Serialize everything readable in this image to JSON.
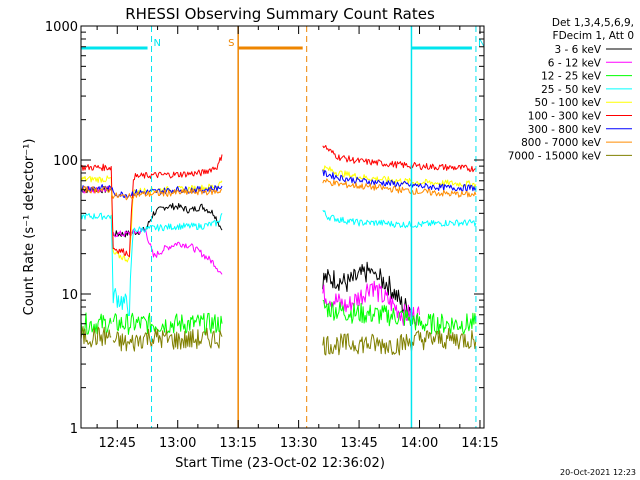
{
  "chart_data": {
    "type": "line",
    "title": "RHESSI Observing Summary Count Rates",
    "xlabel": "Start Time (23-Oct-02 12:36:02)",
    "ylabel": "Count Rate (s⁻¹ detector⁻¹)",
    "yscale": "log",
    "ylim": [
      1,
      1000
    ],
    "xlim_minutes": [
      36,
      136
    ],
    "x_ticks": [
      {
        "label": "12:45",
        "minute": 45
      },
      {
        "label": "13:00",
        "minute": 60
      },
      {
        "label": "13:15",
        "minute": 75
      },
      {
        "label": "13:30",
        "minute": 90
      },
      {
        "label": "13:45",
        "minute": 105
      },
      {
        "label": "14:00",
        "minute": 120
      },
      {
        "label": "14:15",
        "minute": 135
      }
    ],
    "y_ticks": [
      {
        "label": "1",
        "value": 1
      },
      {
        "label": "10",
        "value": 10
      },
      {
        "label": "100",
        "value": 100
      },
      {
        "label": "1000",
        "value": 1000
      }
    ],
    "legend_header": [
      "Det 1,3,4,5,6,9,",
      "FDecim 1, Att 0"
    ],
    "legend_position": "right",
    "footer_timestamp": "20-Oct-2021 12:23",
    "markers": [
      {
        "label": "N",
        "color": "#00e5ee",
        "bar_start": 36,
        "bar_end": 53.5,
        "dash_at": 53.5
      },
      {
        "label": "N",
        "color": "#00e5ee",
        "bar_start": 118,
        "bar_end": 134,
        "dash_at": 134
      },
      {
        "label": "S",
        "color": "#ee8500",
        "bar_start": 75,
        "bar_end": 92,
        "dash_at": 92
      }
    ],
    "solid_verticals": [
      {
        "color": "#ee8500",
        "at": 75
      },
      {
        "color": "#00e5ee",
        "at": 118
      }
    ],
    "series": [
      {
        "name": "3 - 6 keV",
        "color": "#000000",
        "segments": [
          {
            "x": [
              36,
              43.5
            ],
            "y": [
              60,
              60
            ]
          },
          {
            "x": [
              44,
              47,
              52,
              54,
              57,
              60,
              63,
              66,
              69,
              71
            ],
            "y": [
              28,
              28,
              30,
              40,
              45,
              45,
              42,
              45,
              40,
              30
            ]
          },
          {
            "x": [
              96,
              99,
              102,
              104,
              106,
              108,
              110,
              112,
              114,
              116,
              118
            ],
            "y": [
              13,
              13,
              12,
              13,
              14,
              15,
              13,
              12,
              10,
              8,
              8
            ]
          }
        ]
      },
      {
        "name": "6 - 12 keV",
        "color": "#ff00ff",
        "segments": [
          {
            "x": [
              36,
              43.5
            ],
            "y": [
              60,
              60
            ]
          },
          {
            "x": [
              44,
              47,
              52,
              54,
              57,
              60,
              63,
              66,
              69,
              71
            ],
            "y": [
              28,
              28,
              30,
              19,
              22,
              24,
              23,
              20,
              17,
              14
            ]
          },
          {
            "x": [
              96,
              99,
              102,
              104,
              106,
              108,
              110,
              112,
              114,
              116,
              118,
              120
            ],
            "y": [
              10,
              9,
              8,
              9,
              10,
              12,
              10,
              9,
              8,
              7,
              7,
              7
            ]
          }
        ]
      },
      {
        "name": "12 - 25 keV",
        "color": "#00ff00",
        "segments": [
          {
            "x": [
              36,
              43.5
            ],
            "y": [
              6,
              6
            ]
          },
          {
            "x": [
              44,
              48,
              52,
              60,
              70,
              71
            ],
            "y": [
              6,
              6,
              6,
              6,
              6,
              6
            ]
          },
          {
            "x": [
              96,
              100,
              104,
              110,
              115,
              118,
              120,
              127,
              134
            ],
            "y": [
              8,
              7.5,
              7.2,
              7,
              6.8,
              6.5,
              6,
              6,
              6
            ]
          }
        ]
      },
      {
        "name": "25 - 50 keV",
        "color": "#00ffff",
        "segments": [
          {
            "x": [
              36,
              40,
              43.5,
              44,
              48,
              49,
              54,
              60,
              66,
              70,
              71
            ],
            "y": [
              38,
              38,
              38,
              10,
              8,
              30,
              31,
              32,
              32,
              34,
              40
            ]
          },
          {
            "x": [
              96,
              97,
              100,
              105,
              110,
              115,
              120,
              127,
              134
            ],
            "y": [
              42,
              38,
              36,
              34,
              34,
              33,
              33,
              34,
              34
            ]
          }
        ]
      },
      {
        "name": "50 - 100 keV",
        "color": "#ffff00",
        "segments": [
          {
            "x": [
              36,
              43.5,
              44,
              48,
              49,
              54,
              60,
              66,
              70,
              71
            ],
            "y": [
              72,
              72,
              20,
              18,
              58,
              60,
              60,
              62,
              64,
              70
            ]
          },
          {
            "x": [
              96,
              100,
              105,
              110,
              115,
              120,
              127,
              134
            ],
            "y": [
              88,
              80,
              75,
              72,
              70,
              68,
              67,
              66
            ]
          }
        ]
      },
      {
        "name": "100 - 300 keV",
        "color": "#ff0000",
        "segments": [
          {
            "x": [
              36,
              43.5,
              44,
              48,
              49,
              54,
              60,
              66,
              70,
              71
            ],
            "y": [
              88,
              88,
              22,
              20,
              75,
              77,
              78,
              80,
              90,
              110
            ]
          },
          {
            "x": [
              96,
              98,
              100,
              105,
              110,
              115,
              120,
              127,
              134
            ],
            "y": [
              130,
              115,
              105,
              98,
              95,
              92,
              90,
              88,
              86
            ]
          }
        ]
      },
      {
        "name": "300 - 800 keV",
        "color": "#0000ff",
        "segments": [
          {
            "x": [
              36,
              43.5,
              44,
              48,
              49,
              54,
              60,
              66,
              70,
              71
            ],
            "y": [
              62,
              62,
              56,
              55,
              57,
              58,
              60,
              60,
              62,
              64
            ]
          },
          {
            "x": [
              96,
              100,
              105,
              110,
              115,
              120,
              127,
              134
            ],
            "y": [
              80,
              74,
              70,
              68,
              66,
              64,
              62,
              62
            ]
          }
        ]
      },
      {
        "name": "800 - 7000 keV",
        "color": "#ff8c00",
        "segments": [
          {
            "x": [
              36,
              43.5,
              44,
              48,
              49,
              54,
              60,
              66,
              70,
              71
            ],
            "y": [
              60,
              60,
              54,
              53,
              55,
              56,
              57,
              58,
              58,
              60
            ]
          },
          {
            "x": [
              96,
              100,
              105,
              110,
              115,
              120,
              127,
              134
            ],
            "y": [
              70,
              66,
              64,
              62,
              60,
              58,
              56,
              55
            ]
          }
        ]
      },
      {
        "name": "7000 - 15000 keV",
        "color": "#808000",
        "segments": [
          {
            "x": [
              36,
              43.5
            ],
            "y": [
              4.8,
              4.8
            ]
          },
          {
            "x": [
              44,
              48,
              52,
              60,
              66,
              70,
              71
            ],
            "y": [
              4.5,
              4.2,
              4.8,
              4.5,
              4.6,
              4.7,
              4.8
            ]
          },
          {
            "x": [
              96,
              100,
              105,
              110,
              115,
              120,
              127,
              134
            ],
            "y": [
              4.2,
              4.2,
              4.3,
              4.2,
              4.2,
              4.6,
              4.6,
              4.6
            ]
          }
        ]
      }
    ]
  }
}
